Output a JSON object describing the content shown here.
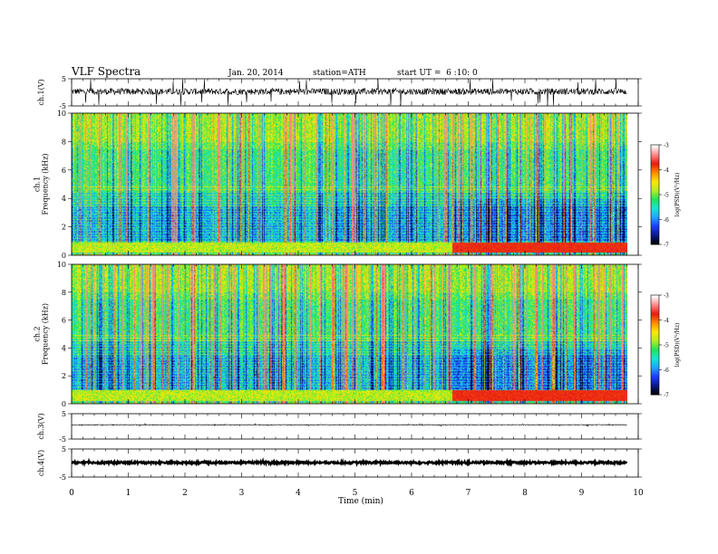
{
  "header": {
    "title": "VLF Spectra",
    "date": "Jan. 20, 2014",
    "station": "station=ATH",
    "start": "start UT =  6 :10: 0"
  },
  "colors": {
    "colormap": [
      "#000000",
      "#0a1a8c",
      "#1f3dff",
      "#1fa5ff",
      "#16e6d2",
      "#22e35a",
      "#b4ee20",
      "#ffe600",
      "#ff8a00",
      "#e81a10",
      "#ff8a8a",
      "#ffffff"
    ]
  },
  "chart_data": [
    {
      "type": "line",
      "name": "ch1-waveform",
      "ylabel": "ch.1(V)",
      "yticks": [
        "5",
        "-5"
      ],
      "ylim": [
        -5,
        5
      ],
      "xlim": [
        0,
        10
      ],
      "data_end_min": 9.8,
      "baseline_v": 0.3,
      "noise_amplitude_v": 1.2,
      "spike_amplitude_v": 4.5
    },
    {
      "type": "heatmap",
      "name": "ch1-spectrogram",
      "ylabel": "ch.1\nFrequency (kHz)",
      "yticks": [
        "0",
        "2",
        "4",
        "6",
        "8",
        "10"
      ],
      "ylim": [
        0,
        10
      ],
      "xlim": [
        0,
        10
      ],
      "data_end_min": 9.8,
      "colorbar": {
        "label": "log(PSD)(V²/Hz)",
        "ticks": [
          "-3",
          "-4",
          "-5",
          "-6",
          "-7"
        ],
        "range": [
          -7,
          -3
        ]
      },
      "regime_change_min": 6.7,
      "low_freq_band_khz": [
        0.2,
        0.9
      ]
    },
    {
      "type": "heatmap",
      "name": "ch2-spectrogram",
      "ylabel": "ch.2\nFrequency (kHz)",
      "yticks": [
        "0",
        "2",
        "4",
        "6",
        "8",
        "10"
      ],
      "ylim": [
        0,
        10
      ],
      "xlim": [
        0,
        10
      ],
      "data_end_min": 9.8,
      "colorbar": {
        "label": "log(PSD)(V²/Hz)",
        "ticks": [
          "-3",
          "-4",
          "-5",
          "-6",
          "-7"
        ],
        "range": [
          -7,
          -3
        ]
      },
      "regime_change_min": 6.7,
      "low_freq_band_khz": [
        0.2,
        1.0
      ]
    },
    {
      "type": "line",
      "name": "ch3-waveform",
      "ylabel": "ch.3(V)",
      "yticks": [
        "5",
        "-5"
      ],
      "ylim": [
        -5,
        5
      ],
      "xlim": [
        0,
        10
      ],
      "data_end_min": 9.8,
      "baseline_v": 0.6,
      "noise_amplitude_v": 0.15,
      "spike_amplitude_v": 0.4
    },
    {
      "type": "line",
      "name": "ch4-waveform",
      "ylabel": "ch.4(V)",
      "yticks": [
        "5",
        "-5"
      ],
      "ylim": [
        -5,
        5
      ],
      "xlim": [
        0,
        10
      ],
      "data_end_min": 9.8,
      "baseline_v": 0.15,
      "noise_amplitude_v": 0.35,
      "spike_amplitude_v": 0.35
    }
  ],
  "xaxis": {
    "label": "Time (min)",
    "ticks": [
      "0",
      "1",
      "2",
      "3",
      "4",
      "5",
      "6",
      "7",
      "8",
      "9",
      "10"
    ]
  }
}
